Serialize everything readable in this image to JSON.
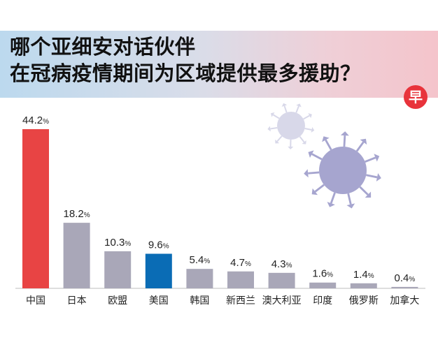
{
  "title": {
    "line1": "哪个亚细安对话伙伴",
    "line2": "在冠病疫情期间为区域提供最多援助？"
  },
  "logo": {
    "text": "早",
    "color": "#e8333b"
  },
  "colors": {
    "highlight_red": "#e84444",
    "highlight_blue": "#0a6cb5",
    "default_bar": "#a9a7b8",
    "virus_dark": "#a6a5cf",
    "virus_light": "#d8d8e9"
  },
  "chart_data": {
    "type": "bar",
    "categories": [
      "中国",
      "日本",
      "欧盟",
      "美国",
      "韩国",
      "新西兰",
      "澳大利亚",
      "印度",
      "俄罗斯",
      "加拿大"
    ],
    "values": [
      44.2,
      18.2,
      10.3,
      9.6,
      5.4,
      4.7,
      4.3,
      1.6,
      1.4,
      0.4
    ],
    "value_labels": [
      "44.2",
      "18.2",
      "10.3",
      "9.6",
      "5.4",
      "4.7",
      "4.3",
      "1.6",
      "1.4",
      "0.4"
    ],
    "unit": "%",
    "bar_colors": [
      "#e84444",
      "#a9a7b8",
      "#a9a7b8",
      "#0a6cb5",
      "#a9a7b8",
      "#a9a7b8",
      "#a9a7b8",
      "#a9a7b8",
      "#a9a7b8",
      "#a9a7b8"
    ],
    "title": "",
    "xlabel": "",
    "ylabel": "",
    "ylim": [
      0,
      44.2
    ],
    "grid": false,
    "legend": "none"
  }
}
